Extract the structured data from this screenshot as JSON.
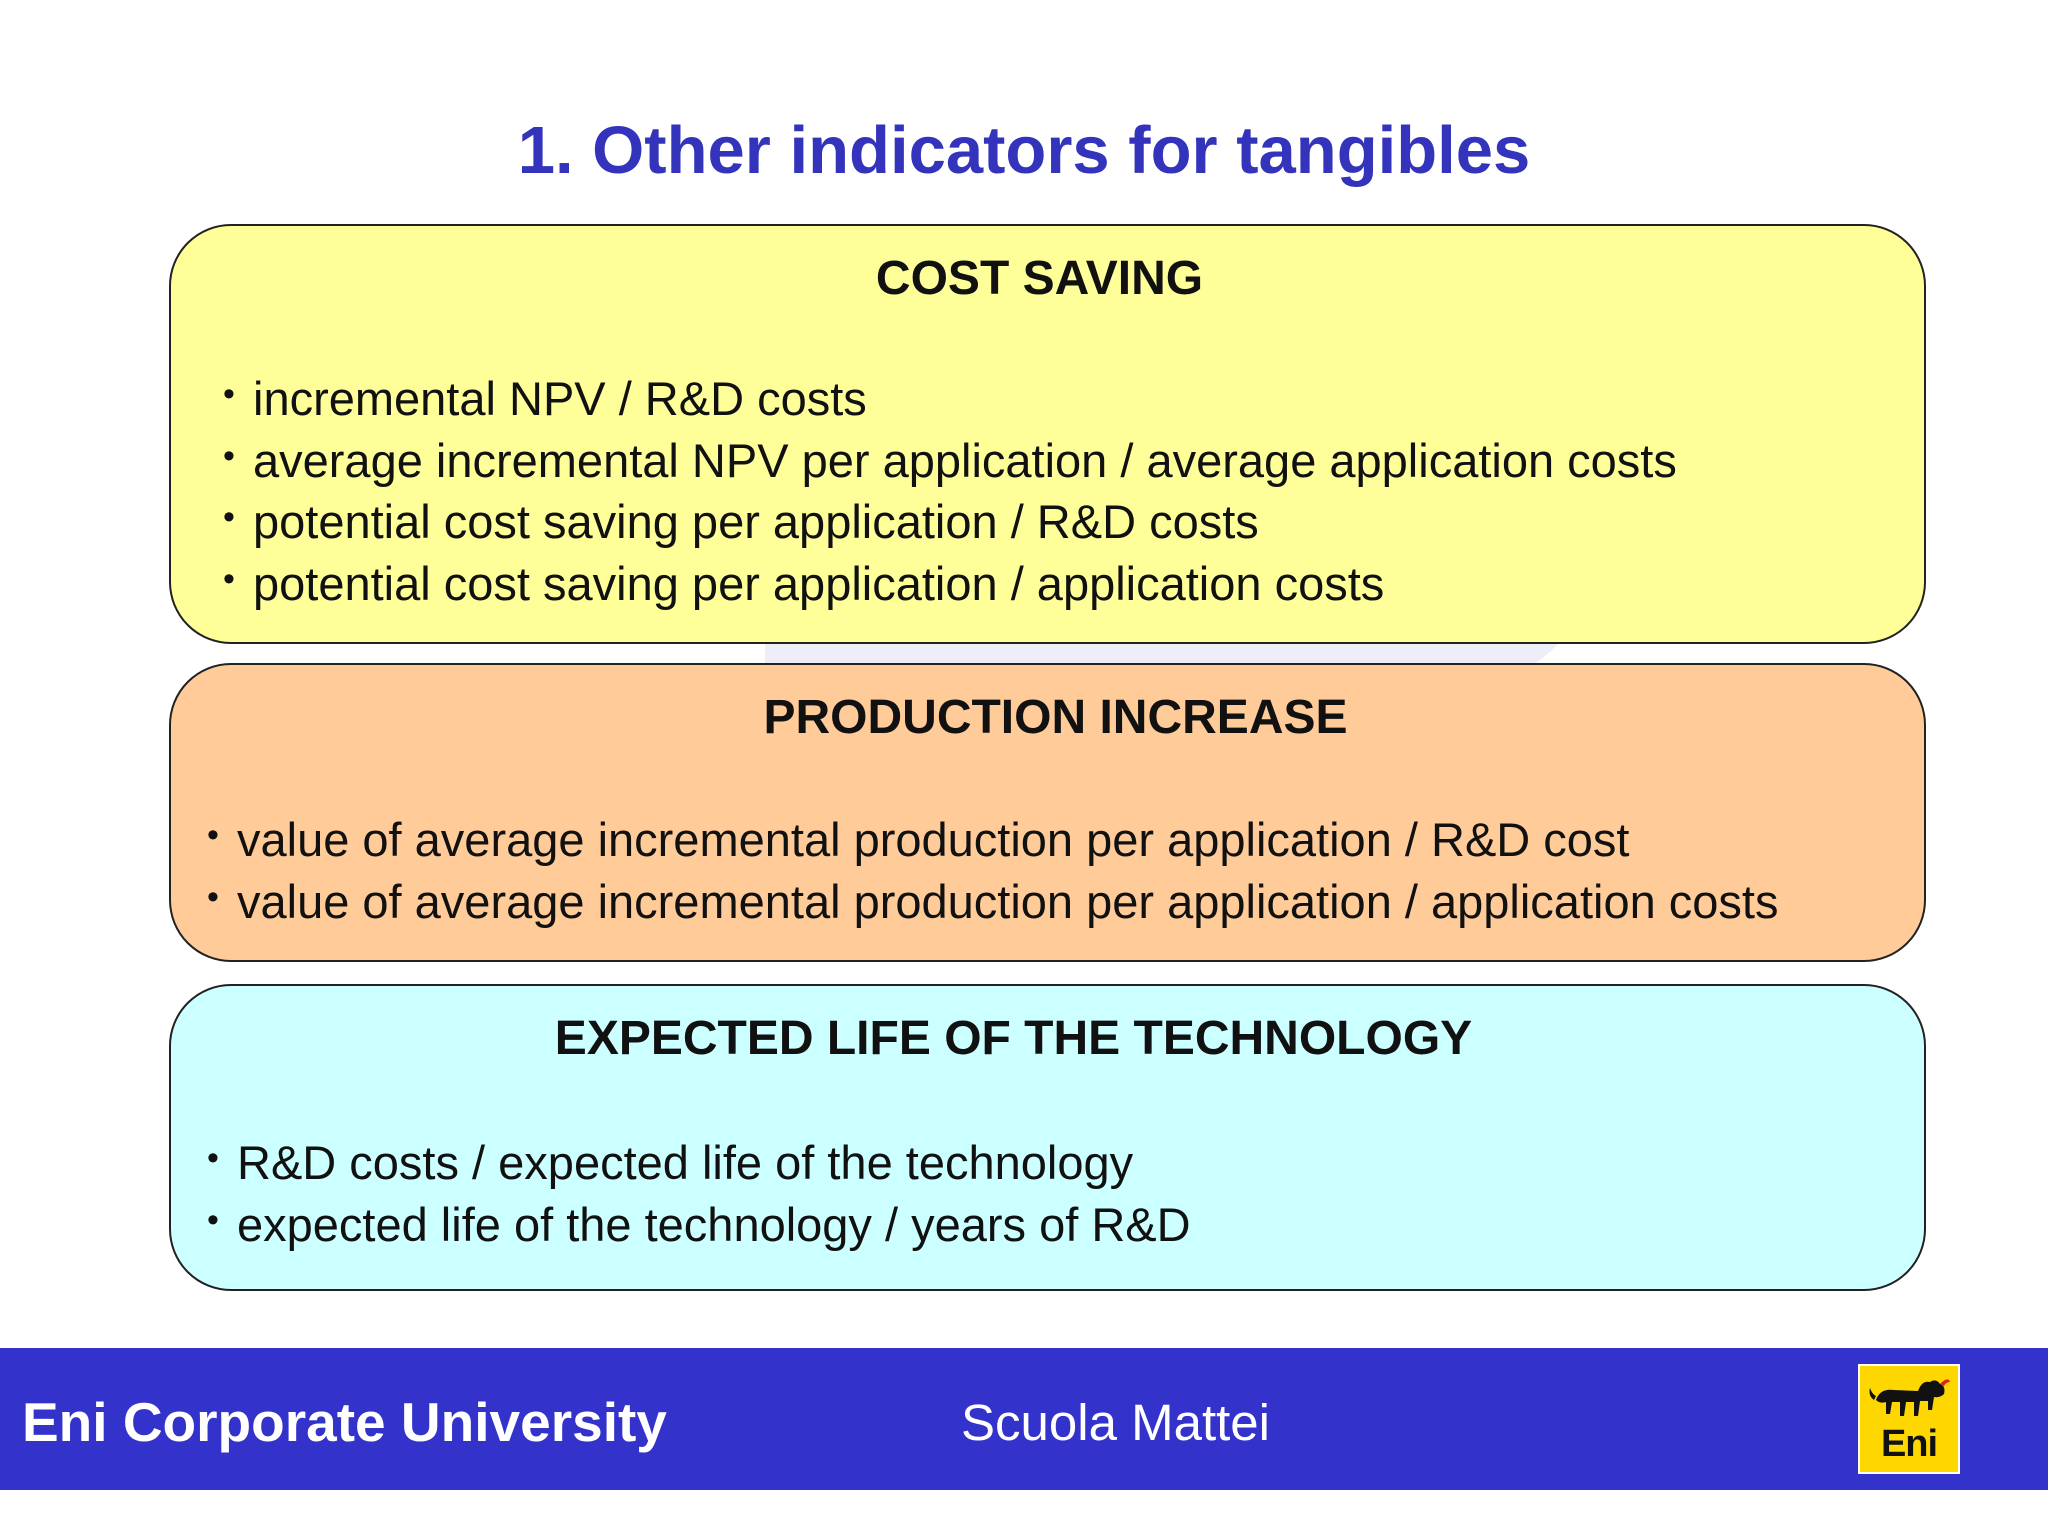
{
  "slide": {
    "title": "1. Other indicators for tangibles"
  },
  "sections": [
    {
      "heading": "COST SAVING",
      "color": "#ffff99",
      "bullets": [
        "incremental NPV / R&D costs",
        "average incremental NPV per application / average application costs",
        "potential cost saving per application / R&D costs",
        "potential cost saving per application / application costs"
      ]
    },
    {
      "heading": "PRODUCTION INCREASE",
      "color": "#ffcc99",
      "bullets": [
        "value of average incremental production per application / R&D cost",
        "value of average incremental production per application / application costs"
      ]
    },
    {
      "heading": "EXPECTED LIFE OF THE TECHNOLOGY",
      "color": "#ccffff",
      "bullets": [
        "R&D costs / expected life of the technology",
        "expected life of the technology / years of R&D"
      ]
    }
  ],
  "footer": {
    "left_text": "Eni Corporate University",
    "center_text": "Scuola Mattei",
    "logo_text": "Eni",
    "logo_icon": "six-legged-dog-icon",
    "bar_color": "#3333cc"
  }
}
